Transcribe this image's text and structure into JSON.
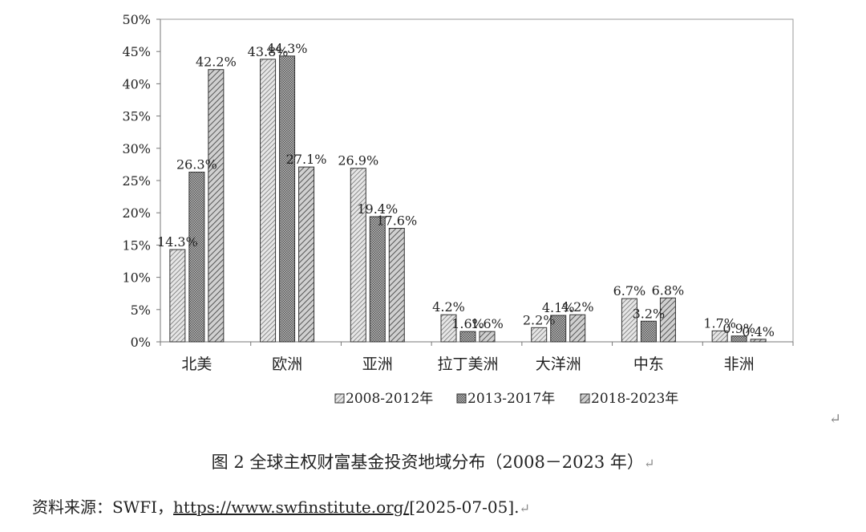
{
  "chart_data": {
    "type": "bar",
    "categories": [
      "北美",
      "欧洲",
      "亚洲",
      "拉丁美洲",
      "大洋洲",
      "中东",
      "非洲"
    ],
    "series": [
      {
        "name": "2008-2012年",
        "values": [
          14.3,
          43.8,
          26.9,
          4.2,
          2.2,
          6.7,
          1.7
        ]
      },
      {
        "name": "2013-2017年",
        "values": [
          26.3,
          44.3,
          19.4,
          1.6,
          4.1,
          3.2,
          0.9
        ]
      },
      {
        "name": "2018-2023年",
        "values": [
          42.2,
          27.1,
          17.6,
          1.6,
          4.2,
          6.8,
          0.4
        ]
      }
    ],
    "data_labels": [
      [
        "14.3%",
        "43.8%",
        "26.9%",
        "4.2%",
        "2.2%",
        "6.7%",
        "1.7%"
      ],
      [
        "26.3%",
        "44.3%",
        "19.4%",
        "1.6%",
        "4.1%",
        "3.2%",
        "0.9%"
      ],
      [
        "42.2%",
        "27.1%",
        "17.6%",
        "1.6%",
        "4.2%",
        "6.8%",
        "0.4%"
      ]
    ],
    "ylim": [
      0,
      50
    ],
    "yticks": [
      "0%",
      "5%",
      "10%",
      "15%",
      "20%",
      "25%",
      "30%",
      "35%",
      "40%",
      "45%",
      "50%"
    ],
    "legend_position": "bottom",
    "grid": false
  },
  "caption": "图 2 全球主权财富基金投资地域分布（2008－2023 年）",
  "source": {
    "prefix": "资料来源：SWFI，",
    "link_text": "https://www.swfinstitute.org/",
    "suffix": "[2025-07-05]."
  },
  "return_mark": "↵"
}
